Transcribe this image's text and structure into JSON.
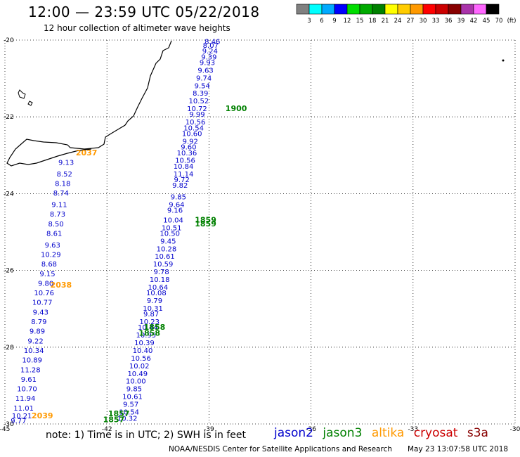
{
  "header": {
    "title": "12:00 — 23:59 UTC 05/22/2018",
    "subtitle": "12 hour collection of altimeter wave heights"
  },
  "colorbar": {
    "labels": [
      "3",
      "6",
      "9",
      "12",
      "15",
      "18",
      "21",
      "24",
      "27",
      "30",
      "33",
      "36",
      "39",
      "42",
      "45",
      "70",
      "(ft)"
    ],
    "colors": [
      "#808080",
      "#00ffff",
      "#00aaff",
      "#0000ff",
      "#00dd00",
      "#00aa00",
      "#008000",
      "#ffff00",
      "#ffcc00",
      "#ff9900",
      "#ff0000",
      "#cc0000",
      "#880000",
      "#aa33aa",
      "#ff66ff",
      "#000000"
    ]
  },
  "footer": {
    "note": "note:  1) Time is in UTC;  2) SWH is in feet",
    "credit": "NOAA/NESDIS Center for Satellite Applications and Research",
    "timestamp": "May 23 13:07:58 UTC 2018",
    "satellites": [
      {
        "name": "jason2",
        "color": "#0000cc"
      },
      {
        "name": "jason3",
        "color": "#008000"
      },
      {
        "name": "altika",
        "color": "#ff9900"
      },
      {
        "name": "cryosat",
        "color": "#cc0000"
      },
      {
        "name": "s3a",
        "color": "#880000"
      }
    ]
  },
  "chart_data": {
    "type": "scatter",
    "title": "12:00 — 23:59 UTC 05/22/2018",
    "subtitle": "12 hour collection of altimeter wave heights",
    "xlim": [
      -45,
      -30
    ],
    "ylim": [
      -30,
      -20
    ],
    "x_ticks": [
      -45,
      -42,
      -39,
      -36,
      -33,
      -30
    ],
    "y_ticks": [
      -20,
      -22,
      -24,
      -26,
      -28,
      -30
    ],
    "grid": true,
    "series": [
      {
        "name": "jason2",
        "color": "#0000cc",
        "points": [
          {
            "x": -38.9,
            "y": -20.1,
            "v": "8.46"
          },
          {
            "x": -38.95,
            "y": -20.2,
            "v": "8.07"
          },
          {
            "x": -38.97,
            "y": -20.35,
            "v": "9.24"
          },
          {
            "x": -39.0,
            "y": -20.5,
            "v": "9.39"
          },
          {
            "x": -39.05,
            "y": -20.65,
            "v": "9.93"
          },
          {
            "x": -39.1,
            "y": -20.85,
            "v": "9.63"
          },
          {
            "x": -39.15,
            "y": -21.05,
            "v": "9.74"
          },
          {
            "x": -39.2,
            "y": -21.25,
            "v": "9.54"
          },
          {
            "x": -39.25,
            "y": -21.45,
            "v": "8.39"
          },
          {
            "x": -39.3,
            "y": -21.65,
            "v": "10.52"
          },
          {
            "x": -39.35,
            "y": -21.85,
            "v": "10.72"
          },
          {
            "x": -39.35,
            "y": -22.0,
            "v": "9.99"
          },
          {
            "x": -39.4,
            "y": -22.2,
            "v": "10.56"
          },
          {
            "x": -39.45,
            "y": -22.35,
            "v": "10.54"
          },
          {
            "x": -39.5,
            "y": -22.5,
            "v": "10.60"
          },
          {
            "x": -39.55,
            "y": -22.7,
            "v": "9.92"
          },
          {
            "x": -39.6,
            "y": -22.85,
            "v": "9.60"
          },
          {
            "x": -39.65,
            "y": -23.0,
            "v": "10.36"
          },
          {
            "x": -39.7,
            "y": -23.2,
            "v": "10.56"
          },
          {
            "x": -39.75,
            "y": -23.35,
            "v": "10.84"
          },
          {
            "x": -39.75,
            "y": -23.55,
            "v": "11.14"
          },
          {
            "x": -39.8,
            "y": -23.7,
            "v": "9.72"
          },
          {
            "x": -39.85,
            "y": -23.85,
            "v": "9.82"
          },
          {
            "x": -39.9,
            "y": -24.15,
            "v": "9.85"
          },
          {
            "x": -39.95,
            "y": -24.35,
            "v": "9.64"
          },
          {
            "x": -40.0,
            "y": -24.5,
            "v": "9.16"
          },
          {
            "x": -40.05,
            "y": -24.75,
            "v": "10.04"
          },
          {
            "x": -40.1,
            "y": -24.95,
            "v": "10.51"
          },
          {
            "x": -40.15,
            "y": -25.1,
            "v": "10.50"
          },
          {
            "x": -40.2,
            "y": -25.3,
            "v": "9.45"
          },
          {
            "x": -40.25,
            "y": -25.5,
            "v": "10.28"
          },
          {
            "x": -40.3,
            "y": -25.7,
            "v": "10.61"
          },
          {
            "x": -40.35,
            "y": -25.9,
            "v": "10.59"
          },
          {
            "x": -40.4,
            "y": -26.1,
            "v": "9.78"
          },
          {
            "x": -40.45,
            "y": -26.3,
            "v": "10.18"
          },
          {
            "x": -40.5,
            "y": -26.5,
            "v": "10.64"
          },
          {
            "x": -40.55,
            "y": -26.65,
            "v": "10.08"
          },
          {
            "x": -40.6,
            "y": -26.85,
            "v": "9.79"
          },
          {
            "x": -40.65,
            "y": -27.05,
            "v": "10.31"
          },
          {
            "x": -40.7,
            "y": -27.2,
            "v": "9.87"
          },
          {
            "x": -40.75,
            "y": -27.4,
            "v": "10.23"
          },
          {
            "x": -40.8,
            "y": -27.55,
            "v": "10.44"
          },
          {
            "x": -40.85,
            "y": -27.75,
            "v": "10.95"
          },
          {
            "x": -40.9,
            "y": -27.95,
            "v": "10.39"
          },
          {
            "x": -40.95,
            "y": -28.15,
            "v": "10.40"
          },
          {
            "x": -41.0,
            "y": -28.35,
            "v": "10.56"
          },
          {
            "x": -41.05,
            "y": -28.55,
            "v": "10.02"
          },
          {
            "x": -41.1,
            "y": -28.75,
            "v": "10.49"
          },
          {
            "x": -41.15,
            "y": -28.95,
            "v": "10.00"
          },
          {
            "x": -41.2,
            "y": -29.15,
            "v": "9.85"
          },
          {
            "x": -41.25,
            "y": -29.35,
            "v": "10.61"
          },
          {
            "x": -41.3,
            "y": -29.55,
            "v": "9.57"
          },
          {
            "x": -41.35,
            "y": -29.75,
            "v": "10.54"
          },
          {
            "x": -41.4,
            "y": -29.92,
            "v": "10.32"
          },
          {
            "x": -43.2,
            "y": -23.25,
            "v": "9.13"
          },
          {
            "x": -43.25,
            "y": -23.55,
            "v": "8.52"
          },
          {
            "x": -43.3,
            "y": -23.8,
            "v": "8.18"
          },
          {
            "x": -43.35,
            "y": -24.05,
            "v": "8.74"
          },
          {
            "x": -43.4,
            "y": -24.35,
            "v": "9.11"
          },
          {
            "x": -43.45,
            "y": -24.6,
            "v": "8.73"
          },
          {
            "x": -43.5,
            "y": -24.85,
            "v": "8.50"
          },
          {
            "x": -43.55,
            "y": -25.1,
            "v": "8.61"
          },
          {
            "x": -43.6,
            "y": -25.4,
            "v": "9.63"
          },
          {
            "x": -43.65,
            "y": -25.65,
            "v": "10.29"
          },
          {
            "x": -43.7,
            "y": -25.9,
            "v": "8.68"
          },
          {
            "x": -43.75,
            "y": -26.15,
            "v": "9.15"
          },
          {
            "x": -43.8,
            "y": -26.4,
            "v": "9.80"
          },
          {
            "x": -43.85,
            "y": -26.65,
            "v": "10.76"
          },
          {
            "x": -43.9,
            "y": -26.9,
            "v": "10.77"
          },
          {
            "x": -43.95,
            "y": -27.15,
            "v": "9.43"
          },
          {
            "x": -44.0,
            "y": -27.4,
            "v": "8.79"
          },
          {
            "x": -44.05,
            "y": -27.65,
            "v": "9.89"
          },
          {
            "x": -44.1,
            "y": -27.9,
            "v": "9.22"
          },
          {
            "x": -44.15,
            "y": -28.15,
            "v": "10.34"
          },
          {
            "x": -44.2,
            "y": -28.4,
            "v": "10.89"
          },
          {
            "x": -44.25,
            "y": -28.65,
            "v": "11.28"
          },
          {
            "x": -44.3,
            "y": -28.9,
            "v": "9.61"
          },
          {
            "x": -44.35,
            "y": -29.15,
            "v": "10.70"
          },
          {
            "x": -44.4,
            "y": -29.4,
            "v": "11.94"
          },
          {
            "x": -44.45,
            "y": -29.65,
            "v": "11.01"
          },
          {
            "x": -44.5,
            "y": -29.85,
            "v": "10.21"
          },
          {
            "x": -44.6,
            "y": -29.98,
            "v": "9.77"
          }
        ]
      },
      {
        "name": "jason3",
        "color": "#008000",
        "points": [
          {
            "x": -38.2,
            "y": -21.85,
            "v": "1900"
          },
          {
            "x": -39.1,
            "y": -24.75,
            "v": "1859"
          },
          {
            "x": -39.1,
            "y": -24.85,
            "v": "1859"
          },
          {
            "x": -40.6,
            "y": -27.55,
            "v": "1858"
          },
          {
            "x": -40.75,
            "y": -27.7,
            "v": "1858"
          },
          {
            "x": -41.65,
            "y": -29.8,
            "v": "1857"
          },
          {
            "x": -41.8,
            "y": -29.95,
            "v": "1857"
          }
        ]
      },
      {
        "name": "altika",
        "color": "#ff9900",
        "points": [
          {
            "x": -42.6,
            "y": -23.0,
            "v": "2037"
          },
          {
            "x": -43.35,
            "y": -26.45,
            "v": "2038"
          },
          {
            "x": -43.9,
            "y": -29.85,
            "v": "2039"
          }
        ]
      }
    ]
  }
}
